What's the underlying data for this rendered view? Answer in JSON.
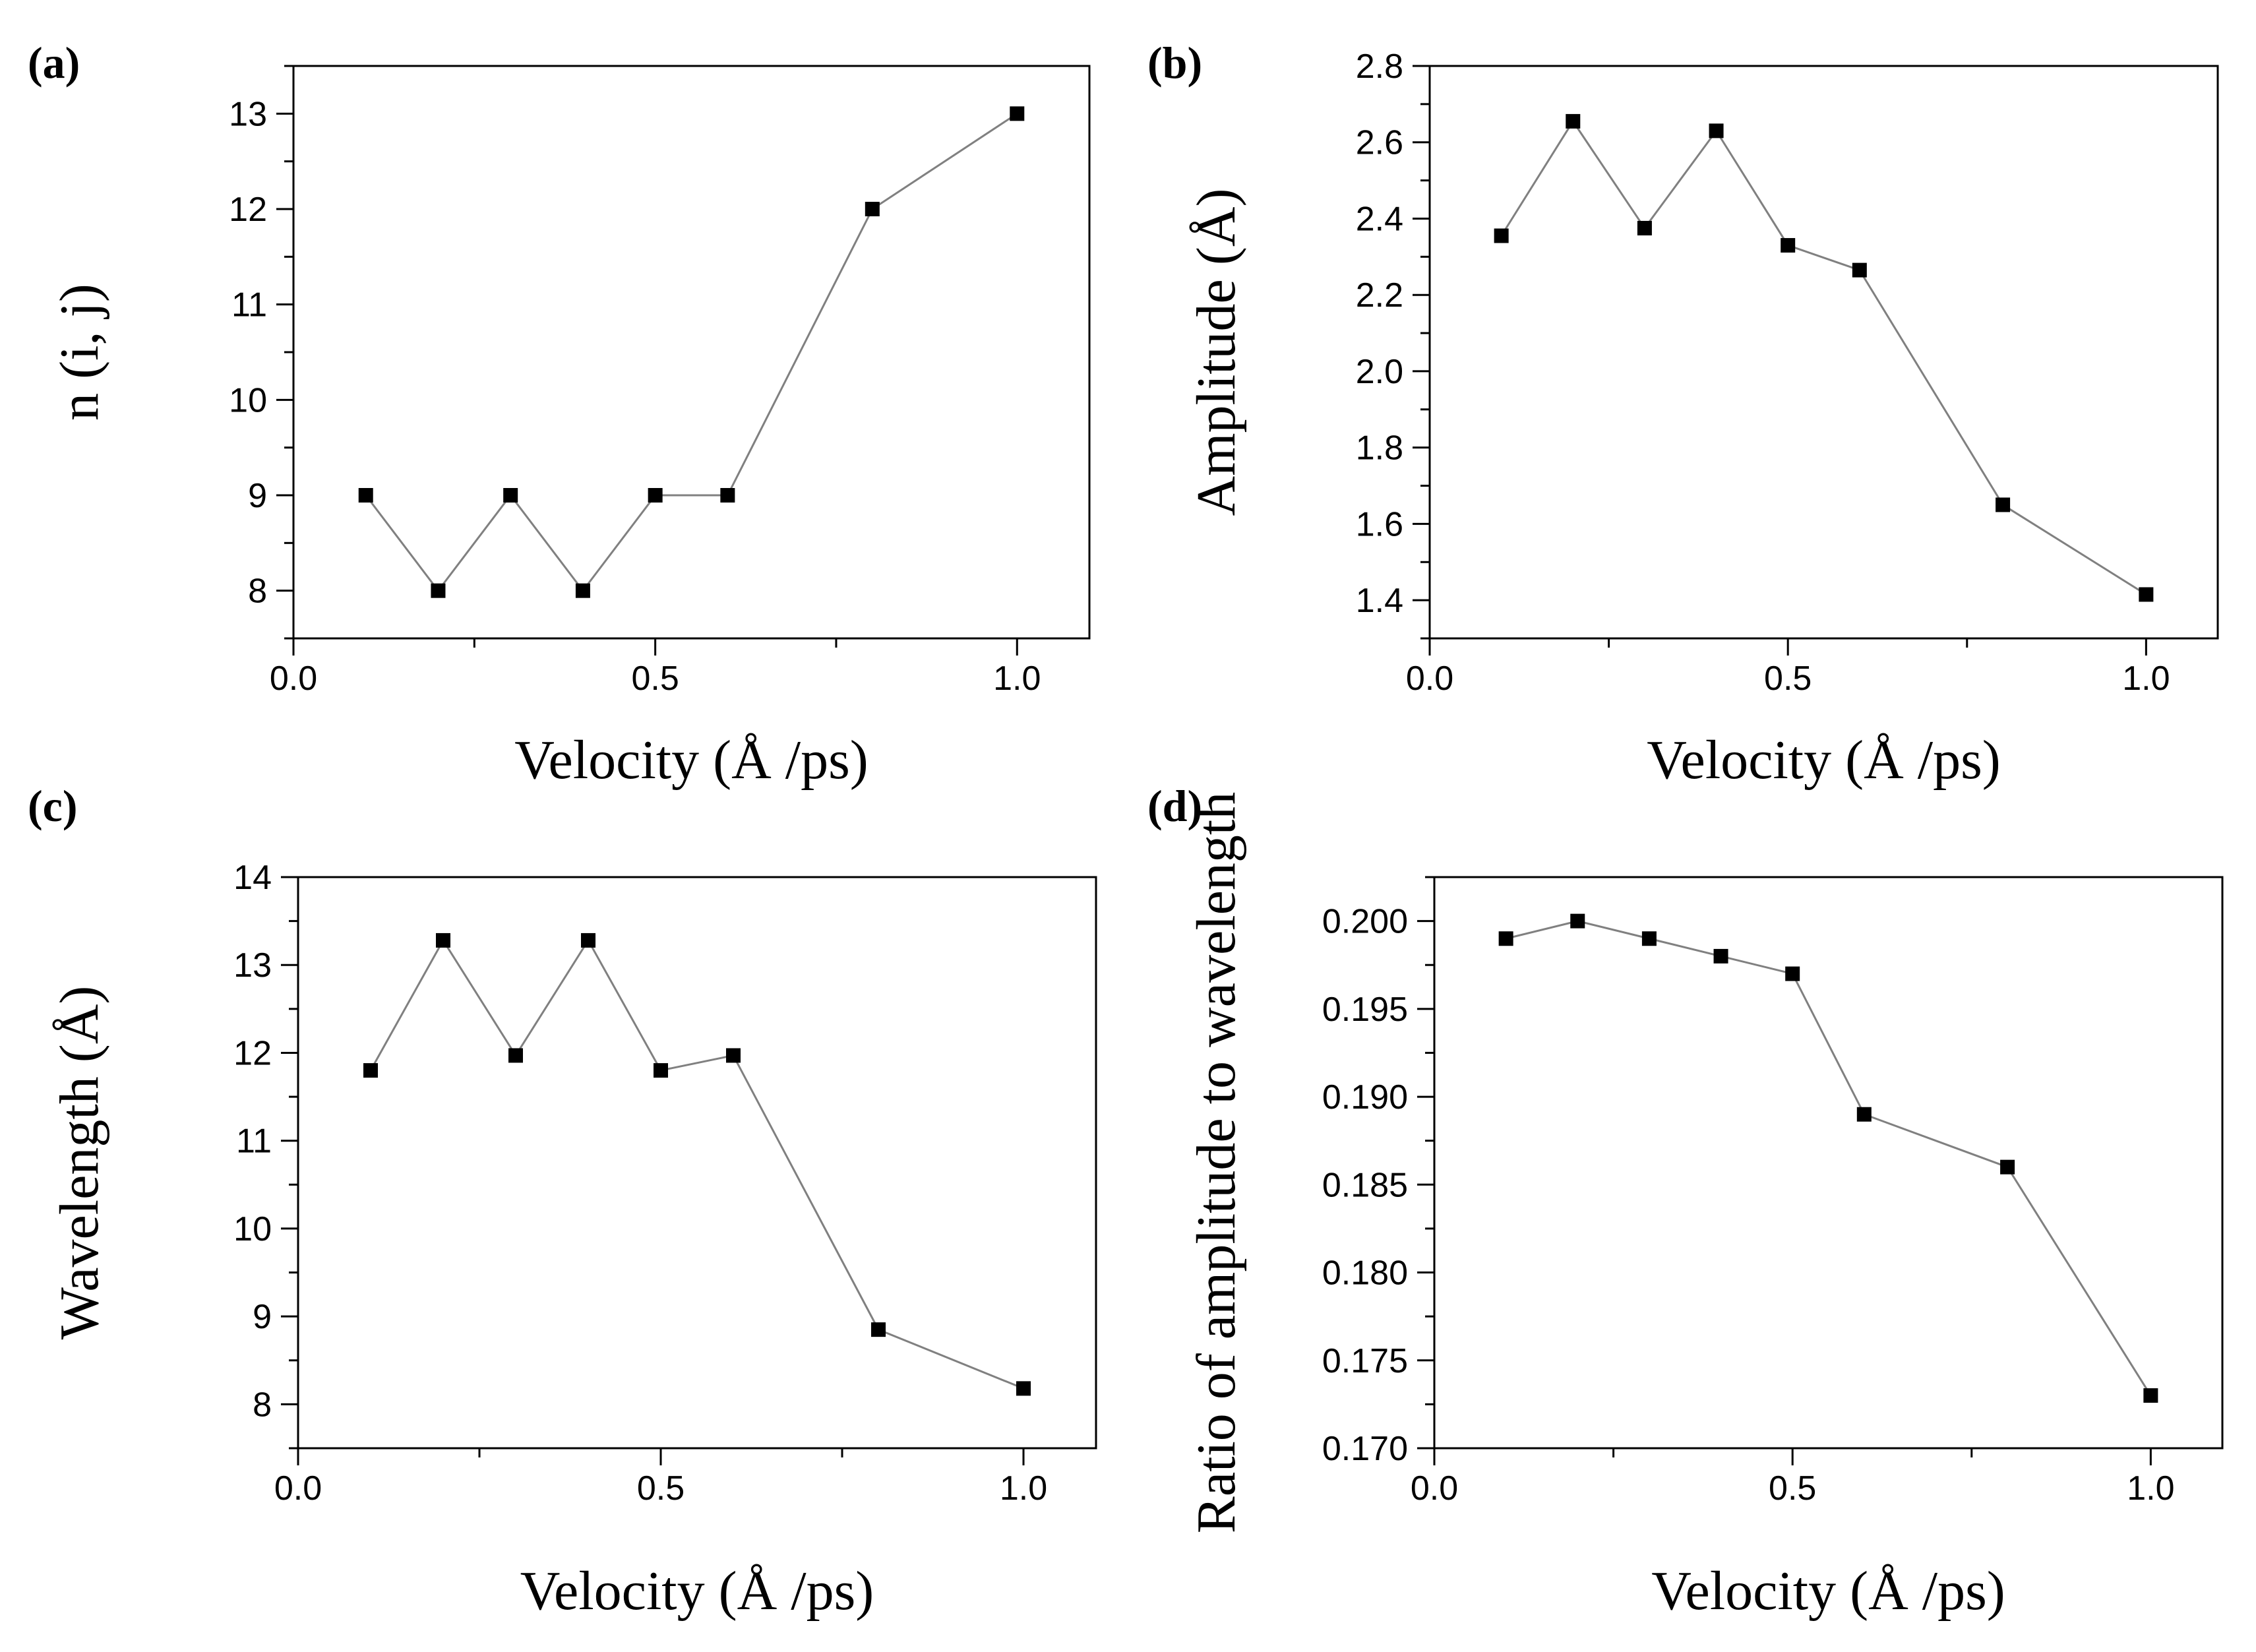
{
  "chart_data": [
    {
      "panel": "(a)",
      "type": "line",
      "xlabel": "Velocity (Å /ps)",
      "ylabel": "n (i, j)",
      "xlim": [
        0,
        1.1
      ],
      "ylim": [
        7.5,
        13.5
      ],
      "xticks": [
        "0.0",
        "0.5",
        "1.0"
      ],
      "yticks": [
        "8",
        "9",
        "10",
        "11",
        "12",
        "13"
      ],
      "x": [
        0.1,
        0.2,
        0.3,
        0.4,
        0.5,
        0.6,
        0.8,
        1.0
      ],
      "y": [
        9,
        8,
        9,
        8,
        9,
        9,
        12,
        13
      ]
    },
    {
      "panel": "(b)",
      "type": "line",
      "xlabel": "Velocity (Å /ps)",
      "ylabel": "Amplitude (Å)",
      "xlim": [
        0,
        1.1
      ],
      "ylim": [
        1.3,
        2.8
      ],
      "xticks": [
        "0.0",
        "0.5",
        "1.0"
      ],
      "yticks": [
        "1.4",
        "1.6",
        "1.8",
        "2.0",
        "2.2",
        "2.4",
        "2.6",
        "2.8"
      ],
      "x": [
        0.1,
        0.2,
        0.3,
        0.4,
        0.5,
        0.6,
        0.8,
        1.0
      ],
      "y": [
        2.355,
        2.655,
        2.375,
        2.63,
        2.33,
        2.265,
        1.65,
        1.415
      ]
    },
    {
      "panel": "(c)",
      "type": "line",
      "xlabel": "Velocity (Å /ps)",
      "ylabel": "Wavelength (Å)",
      "xlim": [
        0,
        1.1
      ],
      "ylim": [
        7.5,
        14
      ],
      "xticks": [
        "0.0",
        "0.5",
        "1.0"
      ],
      "yticks": [
        "8",
        "9",
        "10",
        "11",
        "12",
        "13",
        "14"
      ],
      "x": [
        0.1,
        0.2,
        0.3,
        0.4,
        0.5,
        0.6,
        0.8,
        1.0
      ],
      "y": [
        11.8,
        13.28,
        11.97,
        13.28,
        11.8,
        11.97,
        8.85,
        8.18
      ]
    },
    {
      "panel": "(d)",
      "type": "line",
      "xlabel": "Velocity (Å /ps)",
      "ylabel": "Ratio of amplitude to wavelength",
      "xlim": [
        0,
        1.1
      ],
      "ylim": [
        0.17,
        0.2025
      ],
      "xticks": [
        "0.0",
        "0.5",
        "1.0"
      ],
      "yticks": [
        "0.170",
        "0.175",
        "0.180",
        "0.185",
        "0.190",
        "0.195",
        "0.200"
      ],
      "x": [
        0.1,
        0.2,
        0.3,
        0.4,
        0.5,
        0.6,
        0.8,
        1.0
      ],
      "y": [
        0.199,
        0.2,
        0.199,
        0.198,
        0.197,
        0.189,
        0.186,
        0.173
      ]
    }
  ]
}
